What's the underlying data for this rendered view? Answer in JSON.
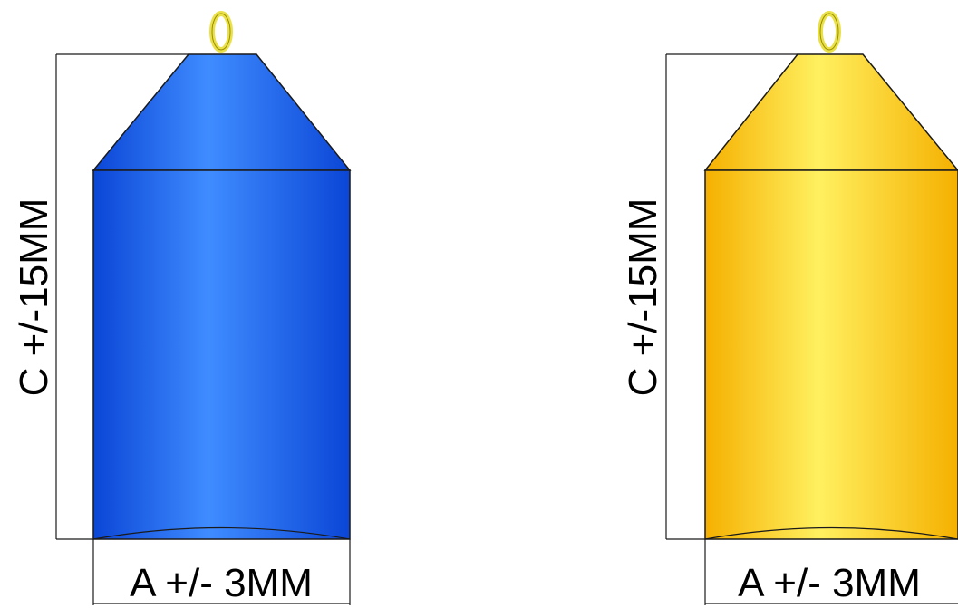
{
  "figures": [
    {
      "id": "blue",
      "body_color": "#1a66ee",
      "body_color_light": "#3f8cff",
      "body_color_dark": "#0b46d6",
      "loop_color": "#e9e04a",
      "height_label": "C +/-15MM",
      "width_label": "A +/- 3MM"
    },
    {
      "id": "yellow",
      "body_color": "#ffd000",
      "body_color_light": "#fff060",
      "body_color_dark": "#f5b000",
      "loop_color": "#e9e04a",
      "height_label": "C +/-15MM",
      "width_label": "A +/- 3MM"
    }
  ]
}
